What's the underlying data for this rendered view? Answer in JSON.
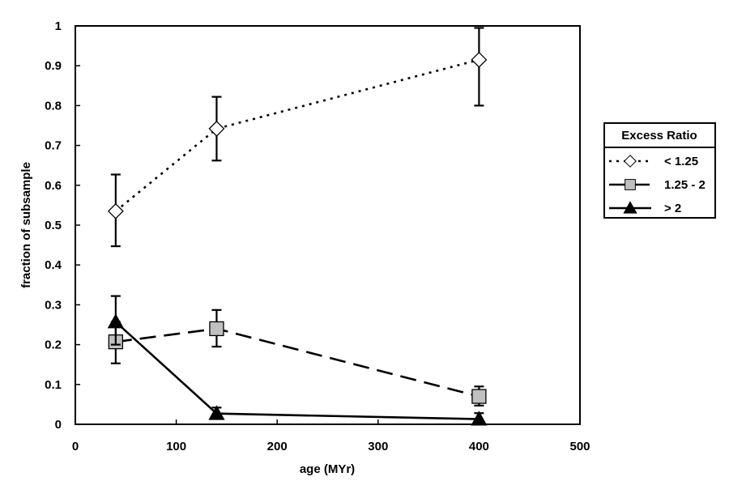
{
  "chart_data": {
    "type": "line",
    "xlabel": "age (MYr)",
    "ylabel": "fraction of subsample",
    "xlim": [
      0,
      500
    ],
    "ylim": [
      0,
      1
    ],
    "xticks": [
      0,
      100,
      200,
      300,
      400,
      500
    ],
    "yticks": [
      0,
      0.1,
      0.2,
      0.3,
      0.4,
      0.5,
      0.6,
      0.7,
      0.8,
      0.9,
      1
    ],
    "grid": false,
    "legend": {
      "title": "Excess Ratio",
      "placement": "right"
    },
    "x": [
      40,
      140,
      400
    ],
    "series": [
      {
        "name": "< 1.25",
        "marker": "diamond",
        "line_style": "dotted",
        "marker_fill": "#ffffff",
        "values": [
          0.535,
          0.742,
          0.915
        ],
        "err_low": [
          0.447,
          0.662,
          0.8
        ],
        "err_high": [
          0.627,
          0.822,
          0.995
        ]
      },
      {
        "name": "1.25 - 2",
        "marker": "square",
        "line_style": "dashed",
        "marker_fill": "#c0c0c0",
        "values": [
          0.207,
          0.24,
          0.07
        ],
        "err_low": [
          0.153,
          0.195,
          0.047
        ],
        "err_high": [
          0.257,
          0.287,
          0.095
        ]
      },
      {
        "name": "> 2",
        "marker": "triangle",
        "line_style": "solid",
        "marker_fill": "#000000",
        "values": [
          0.257,
          0.027,
          0.013
        ],
        "err_low": [
          0.2,
          0.015,
          0.003
        ],
        "err_high": [
          0.322,
          0.042,
          0.028
        ]
      }
    ]
  }
}
